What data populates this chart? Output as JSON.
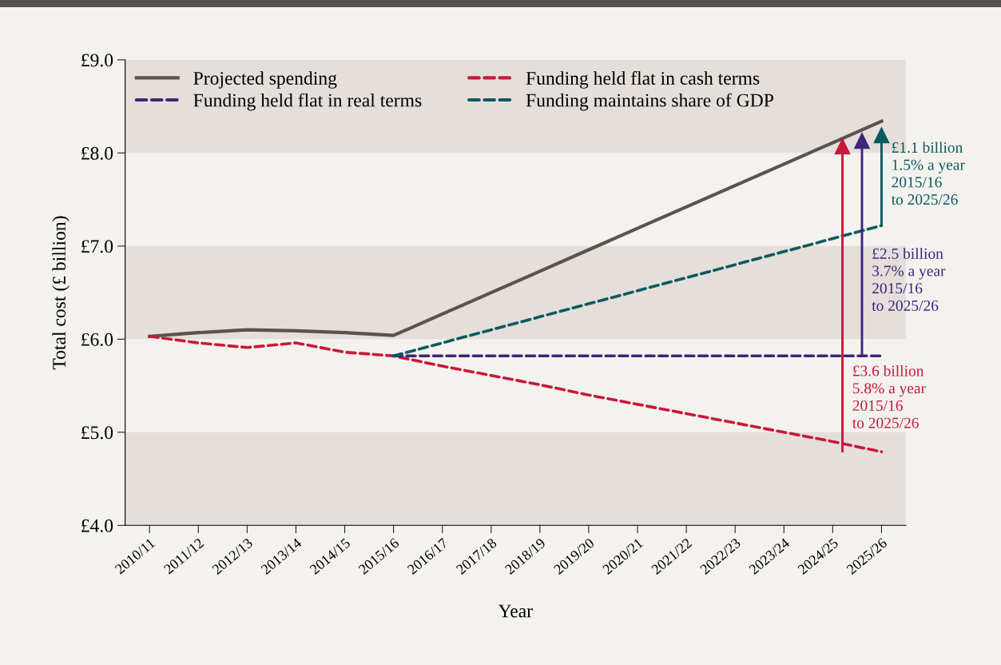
{
  "chart_data": {
    "type": "line",
    "xlabel": "Year",
    "ylabel": "Total cost (£ billion)",
    "categories": [
      "2010/11",
      "2011/12",
      "2012/13",
      "2013/14",
      "2014/15",
      "2015/16",
      "2016/17",
      "2017/18",
      "2018/19",
      "2019/20",
      "2020/21",
      "2021/22",
      "2022/23",
      "2023/24",
      "2024/25",
      "2025/26"
    ],
    "series": [
      {
        "name": "Projected spending",
        "color": "#5a5350",
        "line_style": "solid",
        "values": [
          6.03,
          6.07,
          6.1,
          6.09,
          6.07,
          6.04,
          6.27,
          6.5,
          6.73,
          6.96,
          7.19,
          7.42,
          7.65,
          7.88,
          8.11,
          8.34
        ]
      },
      {
        "name": "Funding held flat in cash terms",
        "color": "#c8193a",
        "line_style": "dashed",
        "values": [
          6.03,
          5.96,
          5.91,
          5.96,
          5.86,
          5.82,
          5.71,
          5.61,
          5.51,
          5.4,
          5.3,
          5.2,
          5.1,
          5.0,
          4.9,
          4.79
        ]
      },
      {
        "name": "Funding held flat in real terms",
        "color": "#3f2479",
        "line_style": "dashed",
        "values": [
          null,
          null,
          null,
          null,
          null,
          5.82,
          5.82,
          5.82,
          5.82,
          5.82,
          5.82,
          5.82,
          5.82,
          5.82,
          5.82,
          5.82
        ]
      },
      {
        "name": "Funding maintains share of GDP",
        "color": "#0b5a5e",
        "line_style": "dashed",
        "values": [
          null,
          null,
          null,
          null,
          null,
          5.82,
          5.96,
          6.1,
          6.24,
          6.38,
          6.52,
          6.66,
          6.8,
          6.94,
          7.08,
          7.22
        ]
      }
    ],
    "annotations": [
      {
        "text": "£1.1 billion\n1.5% a year\n2015/16\nto 2025/26",
        "x": "2025/26",
        "y": 7.22
      },
      {
        "text": "£2.5 billion\n3.7% a year\n2015/16\nto 2025/26",
        "x": "2025/26",
        "y": 5.82
      },
      {
        "text": "£3.6 billion\n5.8% a year\n2015/16\nto 2025/26",
        "x": "2025/26",
        "y": 4.79
      }
    ],
    "ylim": [
      4.0,
      9.0
    ],
    "yticks": [
      {
        "value": 4.0,
        "label": "£4.0"
      },
      {
        "value": 5.0,
        "label": "£5.0"
      },
      {
        "value": 6.0,
        "label": "£6.0"
      },
      {
        "value": 7.0,
        "label": "£7.0"
      },
      {
        "value": 8.0,
        "label": "£8.0"
      },
      {
        "value": 9.0,
        "label": "£9.0"
      }
    ],
    "bands": [
      {
        "axis": "y",
        "from": 4.0,
        "to": 5.0,
        "color": "#e4dfda"
      },
      {
        "axis": "y",
        "from": 6.0,
        "to": 7.0,
        "color": "#e4dfda"
      },
      {
        "axis": "y",
        "from": 8.0,
        "to": 9.0,
        "color": "#e4dfda"
      }
    ],
    "grid": false,
    "legend": "top left",
    "marker": "none"
  }
}
